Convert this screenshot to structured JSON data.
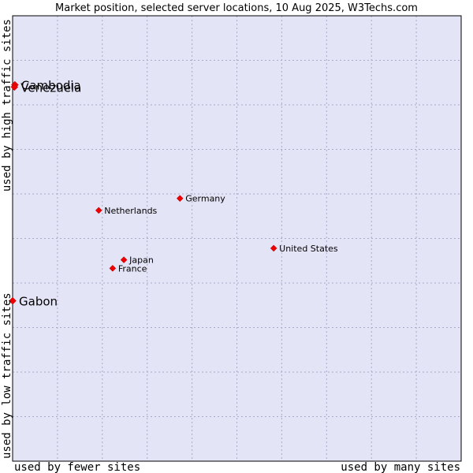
{
  "chart_data": {
    "type": "scatter",
    "title": "Market position, selected server locations, 10 Aug 2025, W3Techs.com",
    "xlabel_left": "used by fewer sites",
    "xlabel_right": "used by many sites",
    "ylabel_bottom": "used by low traffic sites",
    "ylabel_top": "used by high traffic sites",
    "xlim": [
      0,
      100
    ],
    "ylim": [
      0,
      100
    ],
    "grid": true,
    "colors": {
      "background": "#e4e4f7",
      "grid": "#a9a9c8",
      "marker": "#ee0000",
      "border": "#000000"
    },
    "points": [
      {
        "name": "Cambodia",
        "x": 0.5,
        "y": 84.5,
        "size": "large"
      },
      {
        "name": "Venezuela",
        "x": 0.4,
        "y": 84.0,
        "size": "large"
      },
      {
        "name": "Gabon",
        "x": 0.0,
        "y": 36.0,
        "size": "large"
      },
      {
        "name": "Germany",
        "x": 37.3,
        "y": 59.0,
        "size": "small"
      },
      {
        "name": "Netherlands",
        "x": 19.2,
        "y": 56.3,
        "size": "small"
      },
      {
        "name": "United States",
        "x": 58.2,
        "y": 47.8,
        "size": "small"
      },
      {
        "name": "Japan",
        "x": 24.8,
        "y": 45.2,
        "size": "small"
      },
      {
        "name": "France",
        "x": 22.3,
        "y": 43.3,
        "size": "small"
      }
    ]
  }
}
